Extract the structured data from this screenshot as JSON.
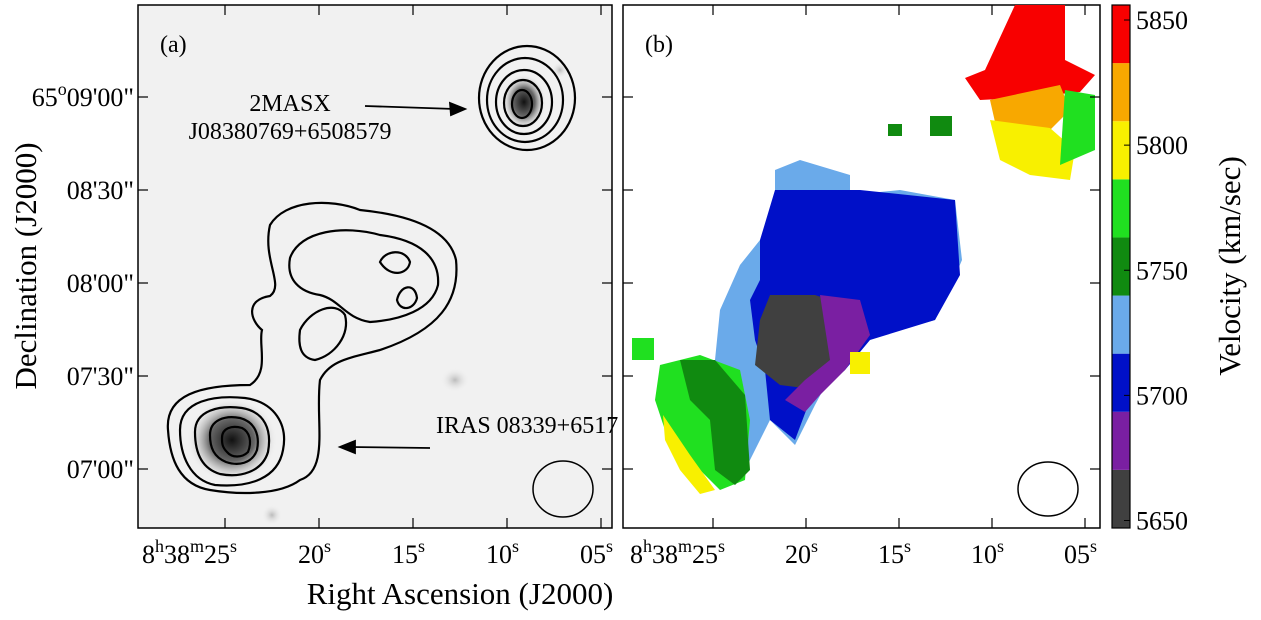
{
  "panels": [
    {
      "label": "(a)",
      "annotations": [
        "2MASX",
        "J08380769+6508579",
        "IRAS 08339+6517"
      ]
    },
    {
      "label": "(b)"
    }
  ],
  "x_axis": {
    "label": "Right Ascension (J2000)",
    "ticks": [
      [
        {
          "t": "8"
        },
        {
          "t": "h",
          "sup": true
        },
        {
          "t": "38"
        },
        {
          "t": "m",
          "sup": true
        },
        {
          "t": "25"
        },
        {
          "t": "s",
          "sup": true
        }
      ],
      [
        {
          "t": "20"
        },
        {
          "t": "s",
          "sup": true
        }
      ],
      [
        {
          "t": "15"
        },
        {
          "t": "s",
          "sup": true
        }
      ],
      [
        {
          "t": "10"
        },
        {
          "t": "s",
          "sup": true
        }
      ],
      [
        {
          "t": "05"
        },
        {
          "t": "s",
          "sup": true
        }
      ]
    ]
  },
  "y_axis": {
    "label": "Declination (J2000)",
    "ticks": [
      [
        {
          "t": "65"
        },
        {
          "t": "o",
          "sup": true
        },
        {
          "t": "09'00\""
        }
      ],
      [
        {
          "t": "08'30\""
        }
      ],
      [
        {
          "t": "08'00\""
        }
      ],
      [
        {
          "t": "07'30\""
        }
      ],
      [
        {
          "t": "07'00\""
        }
      ]
    ]
  },
  "colorbar": {
    "label": "Velocity (km/sec)",
    "lim": [
      5647,
      5856
    ],
    "ticks": [
      5650,
      5700,
      5750,
      5800,
      5850
    ],
    "colors": [
      "#404040",
      "#7a1fa2",
      "#0010c8",
      "#6aaaea",
      "#108a10",
      "#20e020",
      "#f8f000",
      "#f8a800",
      "#f80000"
    ]
  }
}
